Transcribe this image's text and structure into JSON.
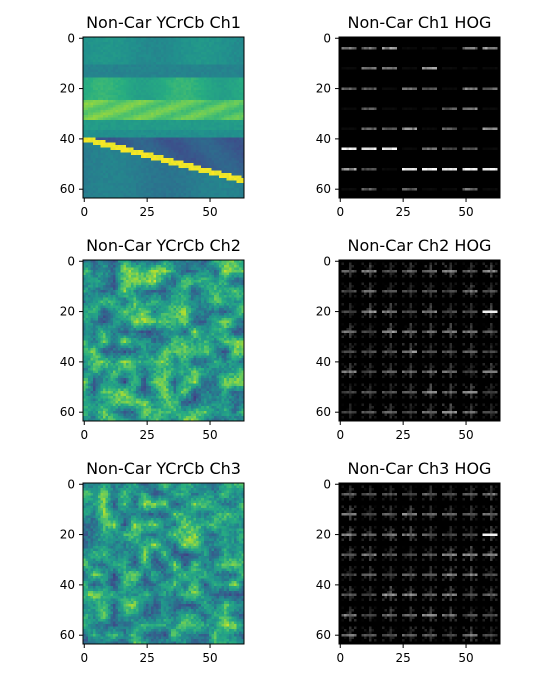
{
  "chart_data": [
    {
      "type": "heatmap",
      "title": "Non-Car YCrCb Ch1",
      "colormap": "viridis",
      "xlim": [
        0,
        63
      ],
      "ylim": [
        63,
        0
      ],
      "xticks": [
        0,
        25,
        50
      ],
      "yticks": [
        0,
        20,
        40,
        60
      ],
      "xtick_labels": [
        "0",
        "25",
        "50"
      ],
      "ytick_labels": [
        "0",
        "20",
        "40",
        "60"
      ],
      "content": "road-edge"
    },
    {
      "type": "heatmap",
      "title": "Non-Car Ch1 HOG",
      "colormap": "gray",
      "xlim": [
        0,
        63
      ],
      "ylim": [
        63,
        0
      ],
      "xticks": [
        0,
        25,
        50
      ],
      "yticks": [
        0,
        20,
        40,
        60
      ],
      "xtick_labels": [
        "0",
        "25",
        "50"
      ],
      "ytick_labels": [
        "0",
        "20",
        "40",
        "60"
      ],
      "content": "hog-sparse"
    },
    {
      "type": "heatmap",
      "title": "Non-Car YCrCb Ch2",
      "colormap": "viridis",
      "xlim": [
        0,
        63
      ],
      "ylim": [
        63,
        0
      ],
      "xticks": [
        0,
        25,
        50
      ],
      "yticks": [
        0,
        20,
        40,
        60
      ],
      "xtick_labels": [
        "0",
        "25",
        "50"
      ],
      "ytick_labels": [
        "0",
        "20",
        "40",
        "60"
      ],
      "content": "texture"
    },
    {
      "type": "heatmap",
      "title": "Non-Car Ch2 HOG",
      "colormap": "gray",
      "xlim": [
        0,
        63
      ],
      "ylim": [
        63,
        0
      ],
      "xticks": [
        0,
        25,
        50
      ],
      "yticks": [
        0,
        20,
        40,
        60
      ],
      "xtick_labels": [
        "0",
        "25",
        "50"
      ],
      "ytick_labels": [
        "0",
        "20",
        "40",
        "60"
      ],
      "content": "hog-dense"
    },
    {
      "type": "heatmap",
      "title": "Non-Car YCrCb Ch3",
      "colormap": "viridis",
      "xlim": [
        0,
        63
      ],
      "ylim": [
        63,
        0
      ],
      "xticks": [
        0,
        25,
        50
      ],
      "yticks": [
        0,
        20,
        40,
        60
      ],
      "xtick_labels": [
        "0",
        "25",
        "50"
      ],
      "ytick_labels": [
        "0",
        "20",
        "40",
        "60"
      ],
      "content": "texture"
    },
    {
      "type": "heatmap",
      "title": "Non-Car Ch3 HOG",
      "colormap": "gray",
      "xlim": [
        0,
        63
      ],
      "ylim": [
        63,
        0
      ],
      "xticks": [
        0,
        25,
        50
      ],
      "yticks": [
        0,
        20,
        40,
        60
      ],
      "xtick_labels": [
        "0",
        "25",
        "50"
      ],
      "ytick_labels": [
        "0",
        "20",
        "40",
        "60"
      ],
      "content": "hog-dense"
    }
  ]
}
